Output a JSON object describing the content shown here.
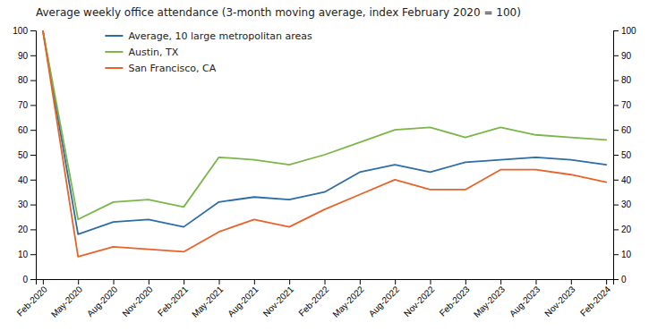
{
  "chart_data": {
    "type": "line",
    "title": "Average weekly office attendance (3-month moving average, index February 2020 = 100)",
    "categories": [
      "Feb-2020",
      "May-2020",
      "Aug-2020",
      "Nov-2020",
      "Feb-2021",
      "May-2021",
      "Aug-2021",
      "Nov-2021",
      "Feb-2022",
      "May-2022",
      "Aug-2022",
      "Nov-2022",
      "Feb-2023",
      "May-2023",
      "Aug-2023",
      "Nov-2023",
      "Feb-2024"
    ],
    "series": [
      {
        "name": "Average, 10 large metropolitan areas",
        "color": "#2e6da4",
        "values": [
          100,
          18,
          23,
          24,
          21,
          31,
          33,
          32,
          35,
          43,
          46,
          43,
          47,
          48,
          49,
          48,
          46
        ]
      },
      {
        "name": "Austin, TX",
        "color": "#7ab648",
        "values": [
          100,
          24,
          31,
          32,
          29,
          49,
          48,
          46,
          50,
          55,
          60,
          61,
          57,
          61,
          58,
          57,
          56
        ]
      },
      {
        "name": "San Francisco, CA",
        "color": "#e8622a",
        "values": [
          100,
          9,
          13,
          12,
          11,
          19,
          24,
          21,
          28,
          34,
          40,
          36,
          36,
          44,
          44,
          42,
          39
        ]
      }
    ],
    "ylim": [
      0,
      100
    ],
    "yticks": [
      0,
      10,
      20,
      30,
      40,
      50,
      60,
      70,
      80,
      90,
      100
    ],
    "y2lim": [
      0,
      100
    ],
    "y2ticks": [
      0,
      10,
      20,
      30,
      40,
      50,
      60,
      70,
      80,
      90,
      100
    ],
    "grid": false,
    "legend": "upper left"
  }
}
